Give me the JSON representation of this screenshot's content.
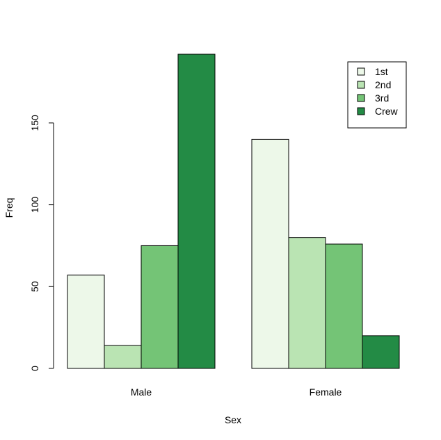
{
  "chart_data": {
    "type": "bar",
    "xlabel": "Sex",
    "ylabel": "Freq",
    "categories": [
      "Male",
      "Female"
    ],
    "series": [
      {
        "name": "1st",
        "color": "#edf8e9",
        "values": [
          57,
          140
        ]
      },
      {
        "name": "2nd",
        "color": "#bae4b3",
        "values": [
          14,
          80
        ]
      },
      {
        "name": "3rd",
        "color": "#74c476",
        "values": [
          75,
          76
        ]
      },
      {
        "name": "Crew",
        "color": "#238b45",
        "values": [
          192,
          20
        ]
      }
    ],
    "ylim": [
      0,
      192
    ],
    "yticks": [
      0,
      50,
      100,
      150
    ],
    "ytick_labels": [
      "0",
      "50",
      "100",
      "150"
    ],
    "legend_position": "top-right",
    "grid": false
  }
}
